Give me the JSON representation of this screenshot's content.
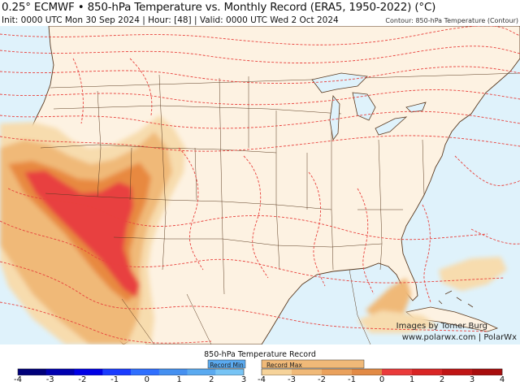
{
  "header": {
    "title": "0.25° ECMWF • 850-hPa Temperature vs. Monthly Record (ERA5, 1950-2022) (°C)",
    "subtitle": "Init: 0000 UTC Mon 30 Sep 2024 | Hour: [48] | Valid: 0000 UTC Wed 2 Oct 2024",
    "contour_label": "Contour: 850-hPa Temperature (Contour)"
  },
  "credits": {
    "line1": "Images by Tomer Burg",
    "line2": "www.polarwx.com | PolarWx"
  },
  "colorbar": {
    "title": "850-hPa Temperature Record",
    "record_min_label": "Record Min",
    "record_max_label": "Record Max",
    "min_ticks": [
      "-4",
      "-3",
      "-2",
      "-1",
      "0",
      "1",
      "2",
      "3"
    ],
    "max_ticks": [
      "-4",
      "-3",
      "-2",
      "-1",
      "0",
      "1",
      "2",
      "3",
      "4"
    ],
    "colors": {
      "min_scale": [
        "#00007a",
        "#0000b0",
        "#0000e6",
        "#1a3cff",
        "#2f6fff",
        "#4590f0",
        "#5aaaf0",
        "#77c4f5"
      ],
      "max_scale": [
        "#f6d39a",
        "#f0b978",
        "#eaa15c",
        "#e28a45",
        "#ea3b3b",
        "#d92525",
        "#c01515",
        "#a80d0d"
      ]
    }
  },
  "map": {
    "land_color": "#fdf2e2",
    "water_color": "#dff2fb",
    "contour_color": "#e8413c",
    "anomaly_colors": [
      "#f7dcae",
      "#f0b978",
      "#e8893f",
      "#e84040"
    ]
  }
}
